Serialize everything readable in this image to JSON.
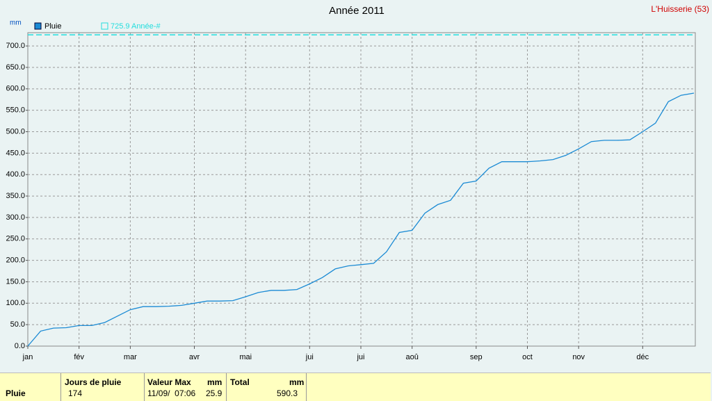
{
  "chart_data": {
    "type": "line",
    "title": "Année 2011",
    "station": "L'Huisserie (53)",
    "y_unit": "mm",
    "categories": [
      "jan",
      null,
      null,
      null,
      "fév",
      null,
      null,
      null,
      "mar",
      null,
      null,
      null,
      null,
      "avr",
      null,
      null,
      null,
      "mai",
      null,
      null,
      null,
      null,
      "jui",
      null,
      null,
      null,
      "jui",
      null,
      null,
      null,
      "aoû",
      null,
      null,
      null,
      null,
      "sep",
      null,
      null,
      null,
      "oct",
      null,
      null,
      null,
      "nov",
      null,
      null,
      null,
      null,
      "déc",
      null,
      null,
      null,
      null
    ],
    "series": [
      {
        "name": "Pluie",
        "color": "#1a8ad4",
        "values": [
          0,
          35,
          42,
          43,
          48,
          48,
          55,
          70,
          85,
          92,
          92,
          93,
          95,
          100,
          105,
          105,
          106,
          115,
          125,
          130,
          130,
          132,
          145,
          160,
          180,
          187,
          190,
          193,
          220,
          265,
          270,
          310,
          330,
          340,
          380,
          385,
          415,
          430,
          430,
          430,
          432,
          435,
          445,
          460,
          477,
          480,
          480,
          481,
          500,
          520,
          570,
          585,
          590
        ]
      }
    ],
    "reference": {
      "name": "725.9 Année-#",
      "value": 725.9,
      "color": "#22dddd"
    },
    "ylim": [
      0,
      731
    ],
    "yticks": [
      {
        "value": 0,
        "label": "0.0"
      },
      {
        "value": 50,
        "label": "50.0"
      },
      {
        "value": 100,
        "label": "100.0"
      },
      {
        "value": 150,
        "label": "150.0"
      },
      {
        "value": 200,
        "label": "200.0"
      },
      {
        "value": 250,
        "label": "250.0"
      },
      {
        "value": 300,
        "label": "300.0"
      },
      {
        "value": 350,
        "label": "350.0"
      },
      {
        "value": 400,
        "label": "400.0"
      },
      {
        "value": 450,
        "label": "450.0"
      },
      {
        "value": 500,
        "label": "500.0"
      },
      {
        "value": 550,
        "label": "550.0"
      },
      {
        "value": 600,
        "label": "600.0"
      },
      {
        "value": 650,
        "label": "650.0"
      },
      {
        "value": 700,
        "label": "700.0"
      }
    ],
    "grid": true
  },
  "summary_table": {
    "headers": [
      "Jours de pluie",
      "Valeur Max",
      "mm",
      "Total",
      "mm"
    ],
    "rows": [
      [
        "Pluie",
        "174",
        "11/09/  07:06",
        "25.9",
        "590.3"
      ]
    ]
  }
}
